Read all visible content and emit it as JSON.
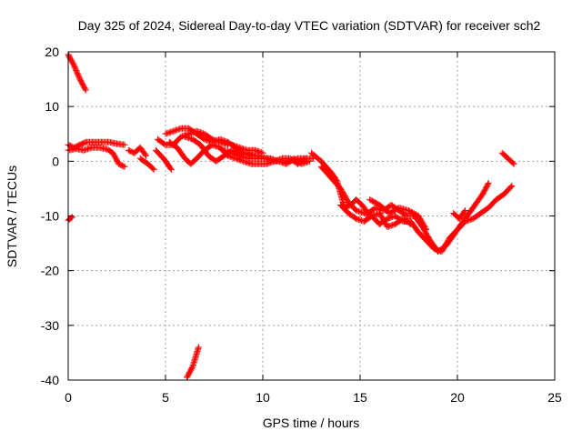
{
  "chart_data": {
    "type": "scatter",
    "title": "Day 325 of 2024, Sidereal Day-to-day VTEC variation (SDTVAR) for receiver sch2",
    "xlabel": "GPS time / hours",
    "ylabel": "SDTVAR / TECUs",
    "xlim": [
      0,
      25
    ],
    "ylim": [
      -40,
      20
    ],
    "x_ticks": [
      0,
      5,
      10,
      15,
      20,
      25
    ],
    "y_ticks": [
      -40,
      -30,
      -20,
      -10,
      0,
      10,
      20
    ],
    "x_tick_labels": [
      "0",
      "5",
      "10",
      "15",
      "20",
      "25"
    ],
    "y_tick_labels": [
      "-40",
      "-30",
      "-20",
      "-10",
      "0",
      "10",
      "20"
    ],
    "grid": true,
    "marker": "+",
    "series_color": "#ff0000",
    "series": [
      {
        "name": "SDTVAR segments",
        "segments": [
          [
            [
              0.0,
              19.5
            ],
            [
              0.3,
              17.5
            ],
            [
              0.6,
              15.0
            ],
            [
              0.9,
              13.0
            ]
          ],
          [
            [
              0.0,
              -10.8
            ],
            [
              0.2,
              -10.2
            ]
          ],
          [
            [
              0.0,
              3.0
            ],
            [
              0.3,
              2.5
            ],
            [
              0.6,
              3.0
            ],
            [
              0.9,
              3.5
            ],
            [
              1.3,
              3.5
            ],
            [
              1.7,
              3.5
            ],
            [
              2.1,
              3.5
            ],
            [
              2.5,
              3.2
            ],
            [
              2.9,
              3.0
            ]
          ],
          [
            [
              0.0,
              2.0
            ],
            [
              0.4,
              2.3
            ],
            [
              0.8,
              2.0
            ],
            [
              1.2,
              2.5
            ],
            [
              1.6,
              2.5
            ],
            [
              2.0,
              2.2
            ],
            [
              2.3,
              1.5
            ],
            [
              2.6,
              -0.5
            ],
            [
              2.9,
              -1.0
            ]
          ],
          [
            [
              3.1,
              2.0
            ],
            [
              3.4,
              1.5
            ],
            [
              3.7,
              2.5
            ],
            [
              4.0,
              1.0
            ]
          ],
          [
            [
              3.7,
              0.5
            ],
            [
              4.1,
              -0.5
            ],
            [
              4.4,
              -1.5
            ]
          ],
          [
            [
              4.5,
              2.0
            ],
            [
              4.9,
              0.5
            ],
            [
              5.3,
              -1.5
            ]
          ],
          [
            [
              4.6,
              4.0
            ],
            [
              5.0,
              3.0
            ],
            [
              5.4,
              3.0
            ],
            [
              5.8,
              4.5
            ],
            [
              6.2,
              5.0
            ],
            [
              6.6,
              5.5
            ],
            [
              7.0,
              5.0
            ],
            [
              7.4,
              4.0
            ],
            [
              7.8,
              3.5
            ],
            [
              8.2,
              3.0
            ]
          ],
          [
            [
              5.0,
              5.0
            ],
            [
              5.4,
              5.5
            ],
            [
              5.8,
              6.0
            ],
            [
              6.2,
              6.0
            ],
            [
              6.6,
              5.0
            ],
            [
              7.0,
              4.0
            ],
            [
              7.4,
              3.5
            ],
            [
              7.8,
              4.0
            ],
            [
              8.2,
              3.5
            ],
            [
              8.6,
              2.5
            ],
            [
              9.0,
              1.5
            ],
            [
              9.4,
              1.0
            ],
            [
              9.8,
              1.0
            ],
            [
              10.2,
              0.5
            ],
            [
              10.6,
              0.0
            ],
            [
              11.0,
              0.0
            ],
            [
              11.4,
              0.0
            ],
            [
              11.8,
              0.5
            ],
            [
              12.2,
              0.5
            ],
            [
              12.6,
              0.5
            ]
          ],
          [
            [
              5.2,
              3.5
            ],
            [
              5.6,
              2.5
            ],
            [
              6.0,
              0.5
            ],
            [
              6.3,
              -0.5
            ],
            [
              6.6,
              0.5
            ],
            [
              7.0,
              2.0
            ],
            [
              7.4,
              3.0
            ],
            [
              7.8,
              2.5
            ],
            [
              8.2,
              1.0
            ],
            [
              8.6,
              0.5
            ],
            [
              9.0,
              0.0
            ],
            [
              9.4,
              -0.5
            ],
            [
              9.8,
              -0.5
            ],
            [
              10.2,
              -0.5
            ],
            [
              10.6,
              0.0
            ],
            [
              11.0,
              0.5
            ],
            [
              11.4,
              0.5
            ],
            [
              11.8,
              -0.5
            ],
            [
              12.2,
              0.5
            ]
          ],
          [
            [
              6.0,
              4.5
            ],
            [
              6.4,
              4.0
            ],
            [
              6.8,
              3.0
            ],
            [
              7.2,
              1.0
            ],
            [
              7.6,
              0.0
            ],
            [
              8.0,
              1.0
            ],
            [
              8.4,
              2.0
            ],
            [
              8.8,
              1.0
            ],
            [
              9.2,
              0.5
            ],
            [
              9.6,
              0.5
            ],
            [
              10.0,
              0.5
            ],
            [
              10.4,
              0.5
            ],
            [
              10.8,
              0.0
            ],
            [
              11.2,
              -0.5
            ],
            [
              11.6,
              0.5
            ],
            [
              12.0,
              -0.5
            ],
            [
              12.4,
              0.0
            ]
          ],
          [
            [
              8.0,
              2.0
            ],
            [
              8.4,
              1.5
            ],
            [
              8.8,
              1.0
            ],
            [
              9.2,
              1.5
            ],
            [
              9.6,
              1.0
            ]
          ],
          [
            [
              8.4,
              3.0
            ],
            [
              8.8,
              2.5
            ],
            [
              9.2,
              2.0
            ],
            [
              9.6,
              2.0
            ],
            [
              10.0,
              1.5
            ]
          ],
          [
            [
              12.5,
              1.5
            ],
            [
              13.0,
              0.0
            ],
            [
              13.5,
              -2.0
            ],
            [
              13.8,
              -3.5
            ],
            [
              14.0,
              -6.0
            ],
            [
              14.2,
              -8.5
            ],
            [
              14.5,
              -8.0
            ],
            [
              14.8,
              -7.0
            ],
            [
              15.1,
              -8.0
            ],
            [
              15.4,
              -9.5
            ],
            [
              15.8,
              -8.5
            ],
            [
              16.2,
              -9.0
            ],
            [
              16.6,
              -8.0
            ],
            [
              17.0,
              -9.0
            ],
            [
              17.4,
              -10.0
            ],
            [
              17.8,
              -10.0
            ],
            [
              18.2,
              -12.0
            ],
            [
              18.6,
              -14.5
            ],
            [
              19.0,
              -16.5
            ],
            [
              19.4,
              -15.5
            ],
            [
              19.8,
              -13.5
            ],
            [
              20.2,
              -11.5
            ],
            [
              20.6,
              -9.5
            ],
            [
              21.0,
              -7.5
            ],
            [
              21.3,
              -6.0
            ],
            [
              21.6,
              -4.0
            ]
          ],
          [
            [
              13.0,
              -1.0
            ],
            [
              13.5,
              -3.0
            ],
            [
              14.0,
              -5.0
            ],
            [
              14.4,
              -7.5
            ],
            [
              14.8,
              -9.0
            ],
            [
              15.2,
              -9.5
            ],
            [
              15.6,
              -10.0
            ],
            [
              16.0,
              -11.5
            ],
            [
              16.4,
              -10.5
            ],
            [
              16.8,
              -10.0
            ],
            [
              17.2,
              -11.0
            ],
            [
              17.6,
              -11.0
            ],
            [
              18.0,
              -13.0
            ],
            [
              18.4,
              -14.5
            ],
            [
              18.8,
              -16.0
            ],
            [
              19.2,
              -16.5
            ],
            [
              19.6,
              -14.0
            ],
            [
              20.0,
              -12.5
            ],
            [
              20.4,
              -11.0
            ],
            [
              20.8,
              -10.5
            ],
            [
              21.2,
              -9.5
            ],
            [
              21.6,
              -8.5
            ],
            [
              22.0,
              -7.0
            ],
            [
              22.4,
              -6.0
            ],
            [
              22.8,
              -4.5
            ]
          ],
          [
            [
              14.0,
              -8.0
            ],
            [
              14.4,
              -9.5
            ],
            [
              14.8,
              -10.5
            ],
            [
              15.2,
              -11.0
            ],
            [
              15.6,
              -10.0
            ],
            [
              16.0,
              -9.5
            ],
            [
              16.4,
              -12.0
            ],
            [
              16.8,
              -11.5
            ],
            [
              17.2,
              -10.5
            ],
            [
              17.6,
              -11.5
            ]
          ],
          [
            [
              15.5,
              -7.0
            ],
            [
              16.0,
              -8.0
            ],
            [
              16.5,
              -9.5
            ],
            [
              17.0,
              -8.5
            ],
            [
              17.5,
              -9.0
            ],
            [
              18.0,
              -10.0
            ],
            [
              18.4,
              -12.5
            ]
          ],
          [
            [
              19.8,
              -9.5
            ],
            [
              20.1,
              -10.5
            ],
            [
              20.4,
              -9.0
            ]
          ],
          [
            [
              22.3,
              1.5
            ],
            [
              22.6,
              0.5
            ],
            [
              22.9,
              -0.5
            ]
          ],
          [
            [
              6.1,
              -39.5
            ],
            [
              6.4,
              -37.5
            ],
            [
              6.7,
              -34.0
            ]
          ]
        ]
      }
    ]
  }
}
